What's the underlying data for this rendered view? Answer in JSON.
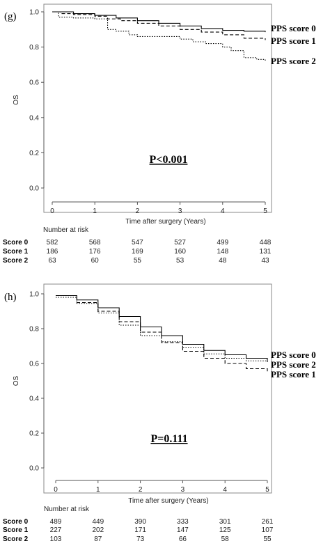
{
  "chart_data": [
    {
      "type": "line",
      "panel_label": "(g)",
      "ylabel": "OS",
      "xlabel": "Time after surgery (Years)",
      "ylim": [
        0,
        1
      ],
      "xlim": [
        0,
        5
      ],
      "xticks": [
        "0",
        "1",
        "2",
        "3",
        "4",
        "5"
      ],
      "yticks": [
        "0.0",
        "0.2",
        "0.4",
        "0.6",
        "0.8",
        "1.0"
      ],
      "annotation": "P<0.001",
      "risk_table_title": "Number at risk",
      "series": [
        {
          "name": "PPS score 0",
          "risk_label": "Score 0",
          "style": "solid",
          "x": [
            0,
            0.1,
            0.5,
            1,
            1.5,
            2,
            2.5,
            3,
            3.5,
            4,
            4.5,
            5
          ],
          "y": [
            1.0,
            1.0,
            0.99,
            0.98,
            0.965,
            0.95,
            0.935,
            0.92,
            0.905,
            0.895,
            0.89,
            0.885
          ],
          "at_risk": [
            "582",
            "568",
            "547",
            "527",
            "499",
            "448"
          ]
        },
        {
          "name": "PPS score 1",
          "risk_label": "Score 1",
          "style": "dashed",
          "x": [
            0,
            0.2,
            0.5,
            1,
            1.3,
            1.6,
            2,
            2.5,
            3,
            3.5,
            4,
            4.5,
            5
          ],
          "y": [
            1.0,
            0.99,
            0.985,
            0.975,
            0.96,
            0.95,
            0.935,
            0.92,
            0.9,
            0.885,
            0.87,
            0.85,
            0.84
          ],
          "at_risk": [
            "186",
            "176",
            "169",
            "160",
            "148",
            "131"
          ]
        },
        {
          "name": "PPS score 2",
          "risk_label": "Score 2",
          "style": "dotted",
          "x": [
            0,
            0.15,
            0.5,
            1,
            1.3,
            1.5,
            1.8,
            2,
            2.5,
            3,
            3.3,
            3.6,
            4,
            4.2,
            4.5,
            4.8,
            5
          ],
          "y": [
            1.0,
            0.97,
            0.965,
            0.96,
            0.9,
            0.89,
            0.87,
            0.86,
            0.86,
            0.845,
            0.83,
            0.82,
            0.8,
            0.78,
            0.74,
            0.73,
            0.72
          ],
          "at_risk": [
            "63",
            "60",
            "55",
            "53",
            "48",
            "43"
          ]
        }
      ]
    },
    {
      "type": "line",
      "panel_label": "(h)",
      "ylabel": "OS",
      "xlabel": "Time after surgery (Years)",
      "ylim": [
        0,
        1
      ],
      "xlim": [
        0,
        5
      ],
      "xticks": [
        "0",
        "1",
        "2",
        "3",
        "4",
        "5"
      ],
      "yticks": [
        "0.0",
        "0.2",
        "0.4",
        "0.6",
        "0.8",
        "1.0"
      ],
      "annotation": "P=0.111",
      "risk_table_title": "Number at risk",
      "series": [
        {
          "name": "PPS score 0",
          "risk_label": "Score 0",
          "style": "solid",
          "x": [
            0,
            0.5,
            1,
            1.5,
            2,
            2.5,
            3,
            3.5,
            4,
            4.5,
            5
          ],
          "y": [
            0.99,
            0.965,
            0.92,
            0.87,
            0.81,
            0.76,
            0.71,
            0.675,
            0.65,
            0.63,
            0.61
          ],
          "at_risk": [
            "489",
            "449",
            "390",
            "333",
            "301",
            "261"
          ]
        },
        {
          "name": "PPS score 1",
          "risk_label": "Score 1",
          "style": "dashed",
          "x": [
            0,
            0.5,
            1,
            1.5,
            2,
            2.5,
            3,
            3.5,
            4,
            4.5,
            5
          ],
          "y": [
            0.99,
            0.95,
            0.9,
            0.84,
            0.78,
            0.72,
            0.67,
            0.63,
            0.6,
            0.57,
            0.555
          ],
          "at_risk": [
            "227",
            "202",
            "171",
            "147",
            "125",
            "107"
          ]
        },
        {
          "name": "PPS score 2",
          "risk_label": "Score 2",
          "style": "dotted",
          "x": [
            0,
            0.5,
            1,
            1.5,
            2,
            2.5,
            3,
            3.5,
            4,
            4.5,
            5
          ],
          "y": [
            0.98,
            0.945,
            0.89,
            0.82,
            0.76,
            0.725,
            0.69,
            0.655,
            0.63,
            0.615,
            0.6
          ],
          "at_risk": [
            "103",
            "87",
            "73",
            "66",
            "58",
            "55"
          ]
        }
      ]
    }
  ]
}
